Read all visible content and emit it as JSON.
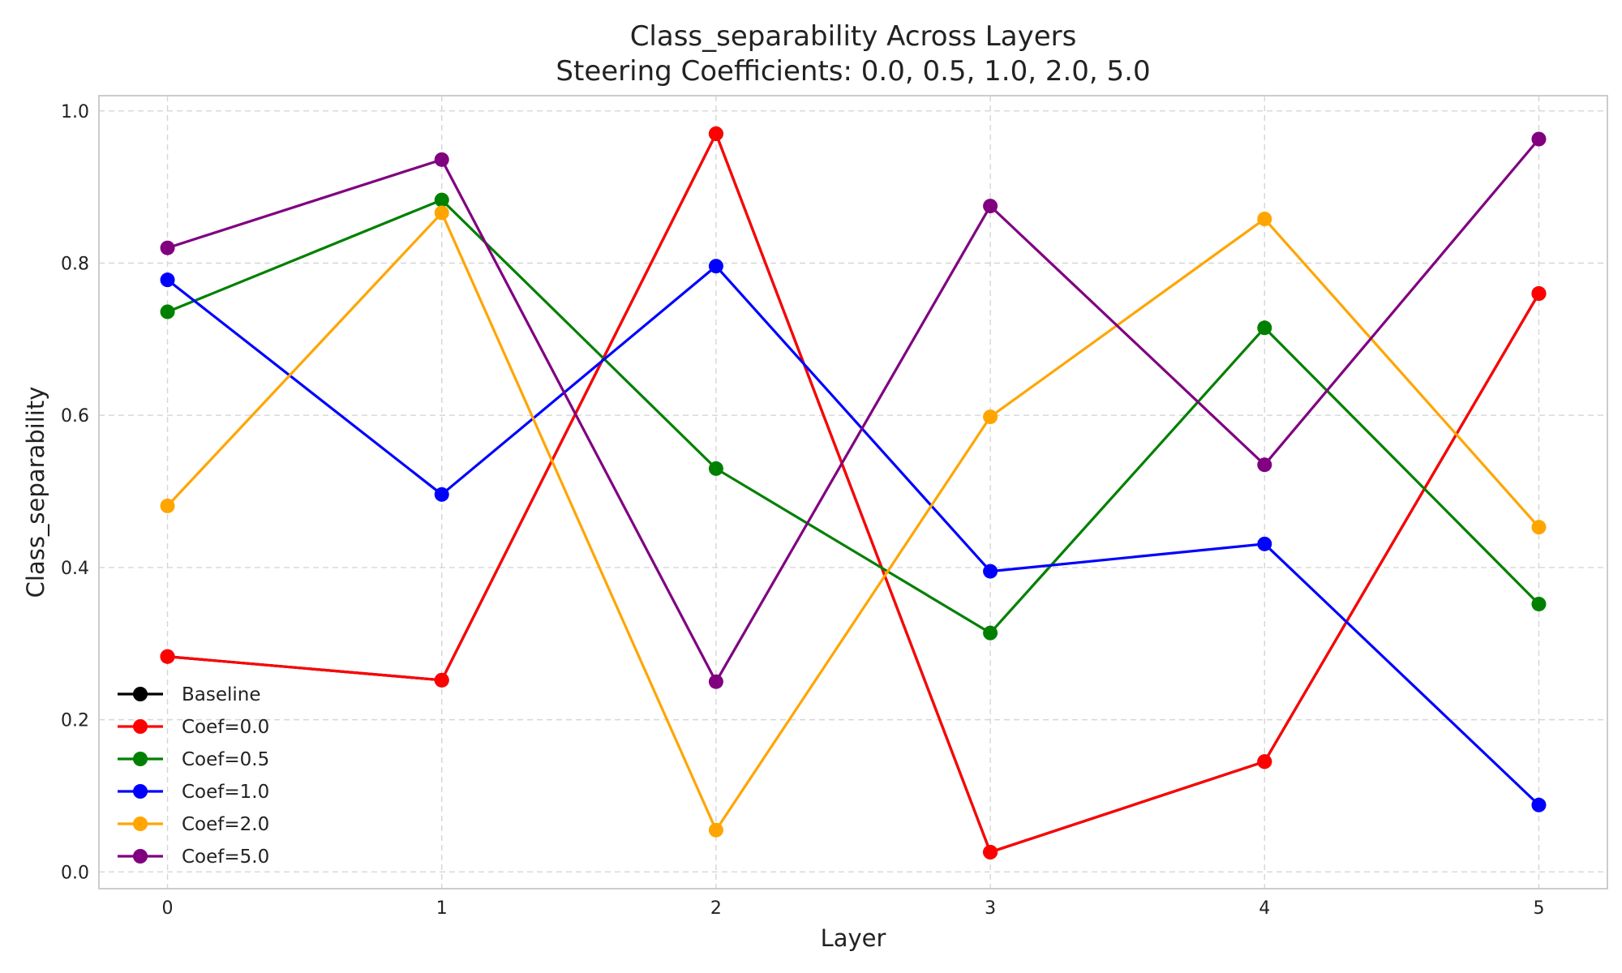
{
  "chart_data": {
    "type": "line",
    "title": "Class_separability Across Layers",
    "subtitle": "Steering Coefficients: 0.0, 0.5, 1.0, 2.0, 5.0",
    "xlabel": "Layer",
    "ylabel": "Class_separability",
    "x": [
      0,
      1,
      2,
      3,
      4,
      5
    ],
    "x_ticks": [
      "0",
      "1",
      "2",
      "3",
      "4",
      "5"
    ],
    "xlim": [
      -0.25,
      5.25
    ],
    "ylim": [
      -0.022,
      1.02
    ],
    "y_ticks": [
      "0.0",
      "0.2",
      "0.4",
      "0.6",
      "0.8",
      "1.0"
    ],
    "y_tick_values": [
      0.0,
      0.2,
      0.4,
      0.6,
      0.8,
      1.0
    ],
    "grid": true,
    "legend_position": "lower-left",
    "series": [
      {
        "name": "Baseline",
        "color": "#000000",
        "values": [
          0.283,
          0.252,
          0.97,
          0.026,
          0.145,
          0.76
        ]
      },
      {
        "name": "Coef=0.0",
        "color": "#ff0000",
        "values": [
          0.283,
          0.252,
          0.97,
          0.026,
          0.145,
          0.76
        ]
      },
      {
        "name": "Coef=0.5",
        "color": "#008000",
        "values": [
          0.736,
          0.883,
          0.53,
          0.314,
          0.715,
          0.352
        ]
      },
      {
        "name": "Coef=1.0",
        "color": "#0000ff",
        "values": [
          0.778,
          0.496,
          0.796,
          0.395,
          0.431,
          0.088
        ]
      },
      {
        "name": "Coef=2.0",
        "color": "#ffa500",
        "values": [
          0.481,
          0.866,
          0.055,
          0.598,
          0.858,
          0.453
        ]
      },
      {
        "name": "Coef=5.0",
        "color": "#800080",
        "values": [
          0.82,
          0.936,
          0.25,
          0.875,
          0.535,
          0.963
        ]
      }
    ]
  }
}
